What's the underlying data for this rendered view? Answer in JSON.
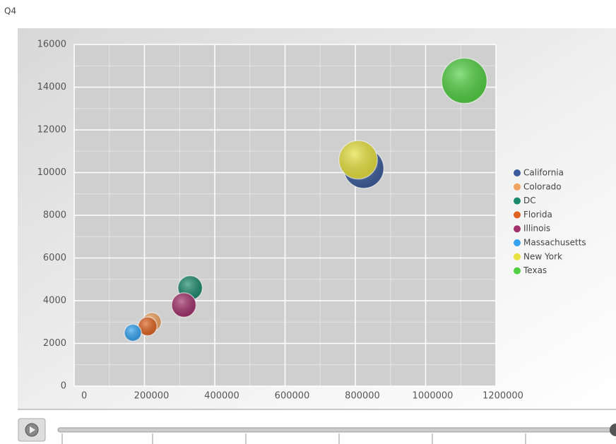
{
  "chart_data": {
    "type": "bubble",
    "subtitle": "Q4",
    "series": [
      {
        "name": "California",
        "color": "#3b5c9c",
        "x": 824000,
        "y": 10200,
        "size": 78
      },
      {
        "name": "Colorado",
        "color": "#f0a25e",
        "x": 221000,
        "y": 3000,
        "size": 17
      },
      {
        "name": "DC",
        "color": "#1b8a6b",
        "x": 330000,
        "y": 4600,
        "size": 29
      },
      {
        "name": "Florida",
        "color": "#e0621f",
        "x": 209000,
        "y": 2800,
        "size": 17
      },
      {
        "name": "Illinois",
        "color": "#a1306b",
        "x": 312000,
        "y": 3800,
        "size": 29
      },
      {
        "name": "Massachusetts",
        "color": "#33a3f0",
        "x": 167000,
        "y": 2500,
        "size": 14
      },
      {
        "name": "New York",
        "color": "#e8e23e",
        "x": 808000,
        "y": 10600,
        "size": 72
      },
      {
        "name": "Texas",
        "color": "#52d043",
        "x": 1110000,
        "y": 14300,
        "size": 100
      }
    ],
    "xlim": [
      0,
      1200000
    ],
    "xticks": [
      0,
      200000,
      400000,
      600000,
      800000,
      1000000,
      1200000
    ],
    "ylim": [
      0,
      16000
    ],
    "yticks": [
      0,
      2000,
      4000,
      6000,
      8000,
      10000,
      12000,
      14000,
      16000
    ],
    "grid": true
  }
}
